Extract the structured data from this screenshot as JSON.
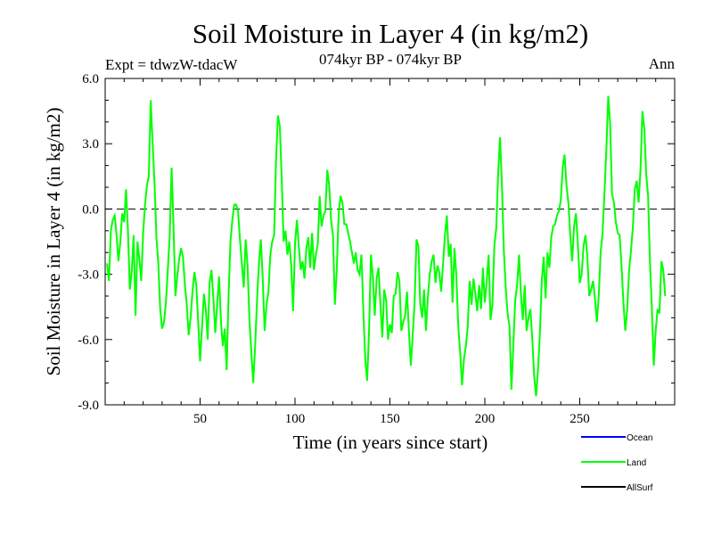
{
  "chart_data": {
    "type": "line",
    "title": "Soil Moisture in Layer 4 (in kg/m2)",
    "subtitle": "074kyr BP - 074kyr BP",
    "left_label": "Expt = tdwzW-tdacW",
    "right_label": "Ann",
    "xlabel": "Time (in years since start)",
    "ylabel": "Soil Moisture in Layer 4 (in kg/m2)",
    "xlim": [
      0,
      300
    ],
    "ylim": [
      -9.0,
      6.0
    ],
    "x_ticks": [
      "50",
      "100",
      "150",
      "200",
      "250"
    ],
    "x_tick_values": [
      50,
      100,
      150,
      200,
      250
    ],
    "y_ticks": [
      "6.0",
      "3.0",
      "0.0",
      "-3.0",
      "-6.0",
      "-9.0"
    ],
    "y_tick_values": [
      6,
      3,
      0,
      -3,
      -6,
      -9
    ],
    "reference_line": 0,
    "legend_position": "bottom-right",
    "series": [
      {
        "name": "Ocean",
        "color": "#0000ff",
        "x_start": 1,
        "values": []
      },
      {
        "name": "Land",
        "color": "#00ff00",
        "x_start": 1,
        "values": [
          -2.5,
          -3.3,
          -1.0,
          -0.5,
          -0.3,
          -1.2,
          -2.4,
          -1.5,
          -0.2,
          -0.6,
          0.9,
          -1.0,
          -3.7,
          -2.9,
          -1.2,
          -4.9,
          -1.5,
          -2.3,
          -3.3,
          -1.1,
          0.2,
          1.1,
          1.5,
          5.0,
          3.0,
          1.2,
          -1.3,
          -2.5,
          -4.6,
          -5.5,
          -5.2,
          -4.3,
          -2.8,
          -1.2,
          1.9,
          -0.8,
          -4.0,
          -3.1,
          -2.3,
          -1.8,
          -2.2,
          -3.5,
          -4.4,
          -5.8,
          -5.0,
          -3.8,
          -2.9,
          -3.5,
          -5.2,
          -7.0,
          -5.5,
          -3.9,
          -4.6,
          -6.0,
          -3.4,
          -2.8,
          -4.1,
          -5.7,
          -4.4,
          -3.1,
          -5.2,
          -6.3,
          -5.5,
          -7.4,
          -4.0,
          -1.5,
          -0.5,
          0.2,
          0.2,
          -0.1,
          -1.4,
          -2.5,
          -3.6,
          -1.4,
          -2.6,
          -5.1,
          -6.6,
          -8.0,
          -6.3,
          -4.2,
          -2.5,
          -1.4,
          -3.2,
          -5.6,
          -4.4,
          -3.8,
          -2.1,
          -1.5,
          -1.2,
          2.2,
          4.3,
          3.8,
          1.4,
          -1.5,
          -1.0,
          -2.1,
          -1.5,
          -2.6,
          -4.7,
          -1.6,
          -0.5,
          -1.7,
          -2.8,
          -2.4,
          -3.2,
          -1.8,
          -1.3,
          -2.7,
          -1.1,
          -2.8,
          -2.1,
          -1.6,
          0.6,
          -0.8,
          -0.3,
          -0.1,
          1.8,
          1.1,
          -0.5,
          -1.2,
          -4.4,
          -2.8,
          -0.2,
          0.6,
          0.3,
          -0.7,
          -0.7,
          -1.1,
          -1.5,
          -2.0,
          -2.5,
          -2.0,
          -2.8,
          -3.0,
          -2.1,
          -4.7,
          -6.9,
          -7.9,
          -5.6,
          -2.1,
          -3.1,
          -4.9,
          -3.2,
          -2.7,
          -4.4,
          -5.9,
          -3.7,
          -4.2,
          -6.0,
          -5.3,
          -5.7,
          -4.0,
          -3.9,
          -2.9,
          -3.3,
          -5.6,
          -5.2,
          -4.9,
          -3.8,
          -5.6,
          -7.2,
          -5.8,
          -4.3,
          -1.4,
          -1.7,
          -4.4,
          -5.0,
          -3.7,
          -5.6,
          -4.0,
          -3.0,
          -2.4,
          -2.1,
          -3.4,
          -2.6,
          -2.9,
          -3.8,
          -2.5,
          -1.2,
          -0.3,
          -2.2,
          -1.6,
          -4.3,
          -1.8,
          -3.1,
          -5.4,
          -6.6,
          -8.1,
          -6.9,
          -6.3,
          -5.4,
          -3.3,
          -4.4,
          -3.2,
          -3.9,
          -4.7,
          -3.5,
          -4.6,
          -2.7,
          -4.3,
          -3.3,
          -2.1,
          -5.1,
          -4.4,
          -1.7,
          -0.9,
          1.6,
          3.3,
          1.1,
          -1.9,
          -3.6,
          -4.8,
          -5.4,
          -8.3,
          -6.3,
          -4.2,
          -3.5,
          -2.1,
          -3.9,
          -5.1,
          -3.5,
          -5.6,
          -5.0,
          -4.6,
          -6.0,
          -7.7,
          -8.6,
          -7.4,
          -5.7,
          -3.3,
          -2.2,
          -4.1,
          -2.0,
          -2.7,
          -1.3,
          -0.8,
          -0.7,
          -0.3,
          -0.1,
          0.4,
          1.9,
          2.5,
          1.1,
          0.3,
          -1.2,
          -2.4,
          -0.8,
          -0.2,
          -1.6,
          -3.4,
          -3.0,
          -1.7,
          -1.2,
          -2.2,
          -4.0,
          -3.7,
          -3.3,
          -4.1,
          -5.2,
          -4.0,
          -2.0,
          -1.1,
          0.7,
          2.7,
          5.2,
          3.9,
          0.7,
          0.3,
          -0.6,
          -1.1,
          -1.2,
          -2.6,
          -4.3,
          -5.6,
          -4.6,
          -2.8,
          -1.9,
          -0.8,
          0.9,
          1.3,
          0.3,
          1.8,
          4.5,
          3.7,
          1.6,
          0.6,
          -2.5,
          -4.6,
          -7.2,
          -5.6,
          -4.6,
          -4.8,
          -2.4,
          -2.8,
          -4.0
        ]
      },
      {
        "name": "AllSurf",
        "color": "#000000",
        "x_start": 1,
        "values": []
      }
    ]
  }
}
